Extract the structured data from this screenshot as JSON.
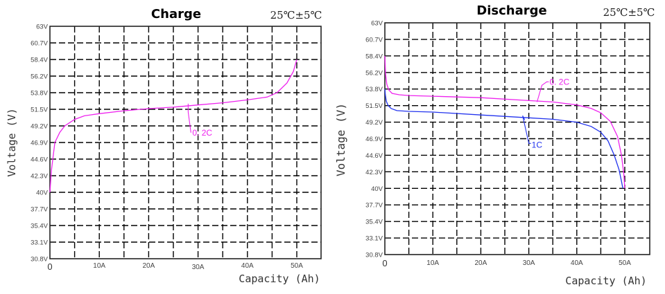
{
  "chart_data": [
    {
      "type": "line",
      "title": "Charge",
      "annotation": "25℃±5℃",
      "xlabel": "Capacity (Ah)",
      "ylabel": "Voltage (V)",
      "x_tick_labels": [
        "0",
        "10A",
        "20A",
        "30A",
        "40A",
        "50A"
      ],
      "x_tick_values": [
        0,
        10,
        20,
        30,
        40,
        50
      ],
      "xlim": [
        0,
        55
      ],
      "y_tick_labels": [
        "63V",
        "60.7V",
        "58.4V",
        "56.2V",
        "53.8V",
        "51.5V",
        "49.2V",
        "46.9V",
        "44.6V",
        "42.3V",
        "40V",
        "37.7V",
        "35.4V",
        "33.1V",
        "30.8V"
      ],
      "y_tick_values": [
        63,
        60.7,
        58.4,
        56.2,
        53.8,
        51.5,
        49.2,
        46.9,
        44.6,
        42.3,
        40,
        37.7,
        35.4,
        33.1,
        30.8
      ],
      "ylim": [
        30.8,
        63
      ],
      "grid": true,
      "series": [
        {
          "name": "0. 2C",
          "color": "#ee22ee",
          "x": [
            0,
            0.3,
            1,
            2,
            3,
            5,
            7,
            10,
            15,
            20,
            25,
            30,
            35,
            40,
            44,
            46,
            48,
            49.3,
            50
          ],
          "y": [
            40,
            43,
            46.9,
            48.3,
            49.2,
            50.1,
            50.6,
            50.9,
            51.3,
            51.6,
            51.8,
            52.1,
            52.4,
            52.8,
            53.2,
            53.8,
            55.2,
            56.8,
            58.4
          ],
          "label_anchor": [
            28,
            51.9
          ]
        }
      ]
    },
    {
      "type": "line",
      "title": "Discharge",
      "annotation": "25℃±5℃",
      "xlabel": "Capacity (Ah)",
      "ylabel": "Voltage (V)",
      "x_tick_labels": [
        "0",
        "10A",
        "20A",
        "30A",
        "40A",
        "50A"
      ],
      "x_tick_values": [
        0,
        10,
        20,
        30,
        40,
        50
      ],
      "xlim": [
        0,
        55
      ],
      "y_tick_labels": [
        "63V",
        "60.7V",
        "58.4V",
        "56.2V",
        "53.8V",
        "51.5V",
        "49.2V",
        "46.9V",
        "44.6V",
        "42.3V",
        "40V",
        "37.7V",
        "35.4V",
        "33.1V",
        "30.8V"
      ],
      "y_tick_values": [
        63,
        60.7,
        58.4,
        56.2,
        53.8,
        51.5,
        49.2,
        46.9,
        44.6,
        42.3,
        40,
        37.7,
        35.4,
        33.1,
        30.8
      ],
      "ylim": [
        30.8,
        63
      ],
      "grid": true,
      "series": [
        {
          "name": "0. 2C",
          "color": "#ee22ee",
          "x": [
            0,
            0.15,
            0.4,
            0.8,
            1.5,
            3,
            5,
            10,
            20,
            30,
            35,
            40,
            43,
            45,
            47,
            48.5,
            49.3,
            49.8,
            50
          ],
          "y": [
            58.4,
            56,
            54.5,
            53.7,
            53.2,
            53,
            52.9,
            52.8,
            52.6,
            52.2,
            52,
            51.6,
            51.1,
            50.5,
            49.3,
            47.2,
            44.6,
            42,
            40
          ],
          "label_anchor": [
            32,
            52.2
          ]
        },
        {
          "name": "1C",
          "color": "#2233ee",
          "x": [
            0,
            0.1,
            0.3,
            0.7,
            1.3,
            2.5,
            5,
            10,
            20,
            30,
            35,
            40,
            43,
            45,
            46.5,
            47.8,
            48.8,
            49.3,
            49.6
          ],
          "y": [
            53.8,
            53,
            52.1,
            51.5,
            51.1,
            50.8,
            50.7,
            50.6,
            50.2,
            49.8,
            49.6,
            49.2,
            48.6,
            47.8,
            46.6,
            44.6,
            42.6,
            41,
            40
          ],
          "label_anchor": [
            29,
            49.9
          ]
        }
      ]
    }
  ]
}
